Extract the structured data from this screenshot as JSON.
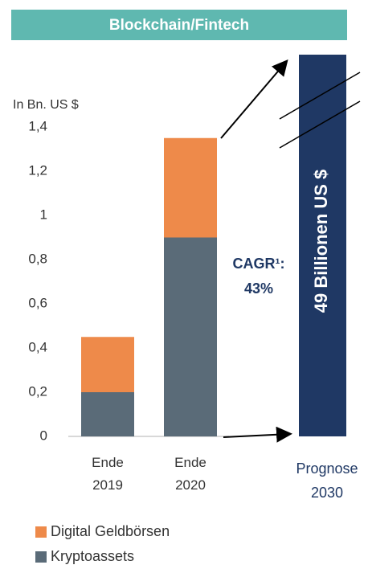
{
  "header": {
    "title": "Blockchain/Fintech"
  },
  "chart_data": {
    "type": "stacked-bar",
    "y_label": "In Bn. US $",
    "categories": [
      "Ende\n2019",
      "Ende\n2020"
    ],
    "series": [
      {
        "name": "Digital Geldbörsen",
        "color": "#ee8a4a",
        "values": [
          0.25,
          0.45
        ]
      },
      {
        "name": "Kryptoassets",
        "color": "#5a6b78",
        "values": [
          0.2,
          0.9
        ]
      }
    ],
    "ylim": [
      0,
      1.4
    ],
    "yticks": [
      0,
      {
        "value": 0.2,
        "label": "0,2"
      },
      {
        "value": 0.4,
        "label": "0,4"
      },
      {
        "value": 0.6,
        "label": "0,6"
      },
      {
        "value": 0.8,
        "label": "0,8"
      },
      1,
      {
        "value": 1.2,
        "label": "1,2"
      },
      {
        "value": 1.4,
        "label": "1,4"
      }
    ],
    "annotation": {
      "line1": "CAGR¹:",
      "line2": "43%"
    },
    "forecast": {
      "category": "Prognose\n2030",
      "value": 49,
      "value_label": "49 Billionen US $",
      "color": "#1f3864"
    }
  }
}
